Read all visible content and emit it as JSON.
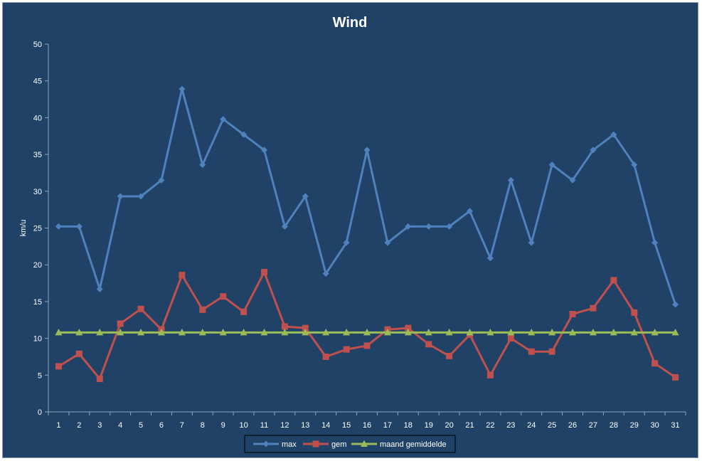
{
  "chart_data": {
    "type": "line",
    "title": "Wind",
    "xlabel": "",
    "ylabel": "km/u",
    "ylim": [
      0,
      50
    ],
    "yticks": [
      0,
      5,
      10,
      15,
      20,
      25,
      30,
      35,
      40,
      45,
      50
    ],
    "categories": [
      "1",
      "2",
      "3",
      "4",
      "5",
      "6",
      "7",
      "8",
      "9",
      "10",
      "11",
      "12",
      "13",
      "14",
      "15",
      "16",
      "17",
      "18",
      "19",
      "20",
      "21",
      "22",
      "23",
      "24",
      "25",
      "26",
      "27",
      "28",
      "29",
      "30",
      "31"
    ],
    "series": [
      {
        "name": "max",
        "color": "#4f81bd",
        "marker": "diamond",
        "values": [
          25.2,
          25.2,
          16.7,
          29.3,
          29.3,
          31.5,
          43.9,
          33.6,
          39.8,
          37.7,
          35.6,
          25.2,
          29.3,
          18.8,
          23.0,
          35.6,
          23.0,
          25.2,
          25.2,
          25.2,
          27.3,
          20.9,
          31.5,
          23.0,
          33.6,
          31.5,
          35.6,
          37.7,
          33.6,
          23.0,
          14.6
        ]
      },
      {
        "name": "gem",
        "color": "#c0504d",
        "marker": "square",
        "values": [
          6.2,
          7.9,
          4.5,
          12.0,
          14.0,
          11.2,
          18.6,
          13.9,
          15.7,
          13.6,
          19.0,
          11.6,
          11.4,
          7.5,
          8.5,
          9.0,
          11.2,
          11.4,
          9.2,
          7.6,
          10.5,
          5.0,
          10.0,
          8.2,
          8.2,
          13.3,
          14.1,
          17.9,
          13.5,
          6.6,
          4.7
        ]
      },
      {
        "name": "maand gemiddelde",
        "color": "#9bbb59",
        "marker": "triangle",
        "values": [
          10.8,
          10.8,
          10.8,
          10.8,
          10.8,
          10.8,
          10.8,
          10.8,
          10.8,
          10.8,
          10.8,
          10.8,
          10.8,
          10.8,
          10.8,
          10.8,
          10.8,
          10.8,
          10.8,
          10.8,
          10.8,
          10.8,
          10.8,
          10.8,
          10.8,
          10.8,
          10.8,
          10.8,
          10.8,
          10.8,
          10.8
        ]
      }
    ],
    "grid": false,
    "legend_position": "bottom"
  }
}
